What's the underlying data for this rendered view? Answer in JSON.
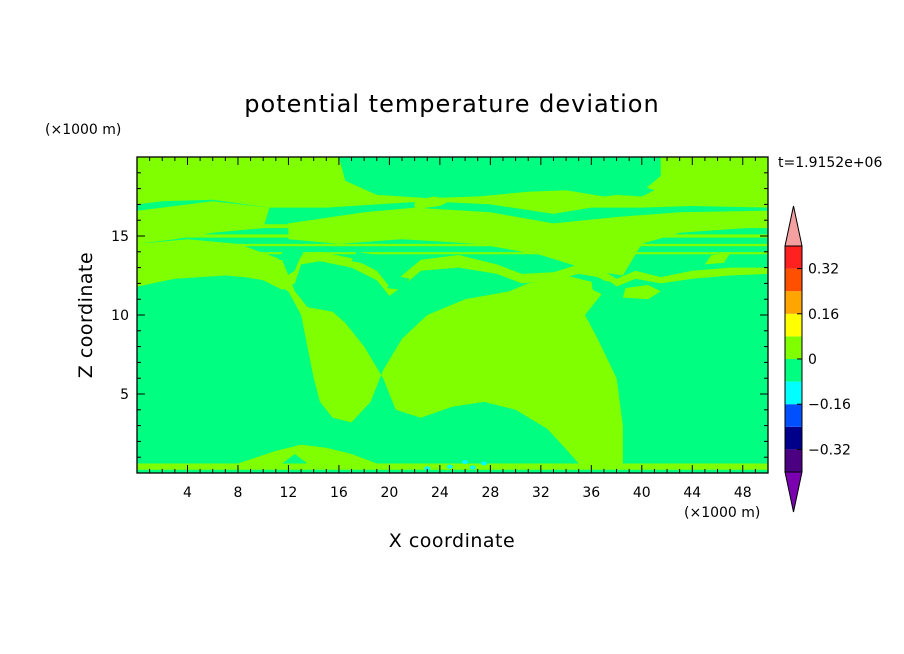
{
  "chart_data": {
    "type": "heatmap",
    "title": "potential temperature deviation",
    "xlabel": "X coordinate",
    "ylabel": "Z coordinate",
    "x_unit": "(×1000 m)",
    "y_unit": "(×1000 m)",
    "time_label": "t=1.9152e+06",
    "xlim": [
      0,
      50
    ],
    "ylim": [
      0,
      20
    ],
    "x_ticks": [
      4,
      8,
      12,
      16,
      20,
      24,
      28,
      32,
      36,
      40,
      44,
      48
    ],
    "y_ticks": [
      5,
      10,
      15
    ],
    "colorbar": {
      "levels": [
        -0.4,
        -0.32,
        -0.24,
        -0.16,
        -0.08,
        0,
        0.08,
        0.16,
        0.24,
        0.32,
        0.4
      ],
      "tick_values": [
        0.32,
        0.16,
        0,
        -0.16,
        -0.32
      ],
      "tick_labels": [
        "0.32",
        "0.16",
        "0",
        "−0.16",
        "−0.32"
      ],
      "colors": [
        "#4b0082",
        "#00008b",
        "#0050ff",
        "#00ffff",
        "#00ff80",
        "#80ff00",
        "#ffff00",
        "#ffa500",
        "#ff5000",
        "#ff2020"
      ],
      "under_color": "#7a00b0",
      "over_color": "#f4a0a0"
    },
    "background_color": "#00ff80",
    "regions": [
      {
        "value": "0 to 0.08",
        "color": "#80ff00",
        "outline": [
          [
            0,
            0.2
          ],
          [
            50,
            0.2
          ],
          [
            50,
            0.6
          ],
          [
            0,
            0.6
          ]
        ]
      },
      {
        "value": "0 to 0.08",
        "color": "#80ff00",
        "outline": [
          [
            0,
            11.8
          ],
          [
            3,
            12.3
          ],
          [
            7,
            12.5
          ],
          [
            10,
            12.3
          ],
          [
            12,
            11.5
          ],
          [
            13,
            10
          ],
          [
            13.5,
            8
          ],
          [
            14,
            6
          ],
          [
            14.5,
            4.5
          ],
          [
            15.5,
            3.5
          ],
          [
            17,
            3.2
          ],
          [
            18.5,
            4.5
          ],
          [
            19.5,
            6.5
          ],
          [
            21,
            8.5
          ],
          [
            23,
            10
          ],
          [
            26,
            11
          ],
          [
            29.5,
            11.5
          ],
          [
            31,
            12
          ],
          [
            34,
            12.5
          ],
          [
            36.5,
            12
          ],
          [
            37,
            11.5
          ],
          [
            35.5,
            10
          ],
          [
            36.5,
            8.5
          ],
          [
            38,
            6
          ],
          [
            38.5,
            3
          ],
          [
            38.5,
            0.6
          ],
          [
            35,
            0.6
          ],
          [
            34,
            1.5
          ],
          [
            32.5,
            2.8
          ],
          [
            30,
            4
          ],
          [
            27.5,
            4.5
          ],
          [
            25,
            4.2
          ],
          [
            22.5,
            3.5
          ],
          [
            20.5,
            4
          ],
          [
            19.5,
            6
          ],
          [
            18,
            8
          ],
          [
            16.5,
            9.5
          ],
          [
            15.5,
            10.2
          ],
          [
            13.5,
            10.5
          ],
          [
            12.5,
            11.5
          ],
          [
            11.5,
            13.5
          ],
          [
            8,
            14.5
          ],
          [
            4,
            14.8
          ],
          [
            0,
            14.5
          ]
        ]
      },
      {
        "value": "0 to 0.08",
        "color": "#80ff00",
        "outline": [
          [
            12,
            15.8
          ],
          [
            18,
            16.5
          ],
          [
            22,
            16.8
          ],
          [
            28,
            16.5
          ],
          [
            33,
            15.8
          ],
          [
            38,
            16.2
          ],
          [
            43,
            16.5
          ],
          [
            50,
            16.6
          ],
          [
            50,
            15.6
          ],
          [
            43,
            15.2
          ],
          [
            40,
            14.5
          ],
          [
            38.5,
            12.5
          ],
          [
            36,
            12.8
          ],
          [
            32,
            13.8
          ],
          [
            27,
            14.5
          ],
          [
            21,
            14.8
          ],
          [
            16,
            14.5
          ],
          [
            12,
            14.8
          ]
        ]
      },
      {
        "value": "0 to 0.08",
        "color": "#80ff00",
        "outline": [
          [
            0,
            14.5
          ],
          [
            3,
            14.8
          ],
          [
            6,
            15.2
          ],
          [
            10,
            15.5
          ],
          [
            10.5,
            16.8
          ],
          [
            6,
            17.2
          ],
          [
            2,
            16.8
          ],
          [
            0,
            16.6
          ]
        ]
      },
      {
        "value": "0 to 0.08",
        "color": "#80ff00",
        "outline": [
          [
            0,
            20
          ],
          [
            16,
            20
          ],
          [
            16.5,
            18.5
          ],
          [
            19,
            17.6
          ],
          [
            23,
            17.4
          ],
          [
            27,
            17.5
          ],
          [
            31,
            17.8
          ],
          [
            34,
            17.9
          ],
          [
            37,
            17.5
          ],
          [
            40,
            17.8
          ],
          [
            41.5,
            18.8
          ],
          [
            41.5,
            20
          ],
          [
            50,
            20
          ],
          [
            50,
            16.8
          ],
          [
            44,
            16.9
          ],
          [
            40,
            16.8
          ],
          [
            36,
            16.8
          ],
          [
            33,
            16.4
          ],
          [
            28,
            17
          ],
          [
            23,
            17.2
          ],
          [
            19,
            17
          ],
          [
            15,
            16.8
          ],
          [
            10.5,
            16.8
          ],
          [
            6,
            17.3
          ],
          [
            2,
            17.2
          ],
          [
            0,
            17
          ]
        ]
      },
      {
        "value": "0 to 0.08",
        "color": "#80ff00",
        "outline": [
          [
            0,
            12.3
          ],
          [
            3,
            13
          ],
          [
            7,
            13.2
          ],
          [
            10,
            12.8
          ],
          [
            11.5,
            12.3
          ],
          [
            12.5,
            12.8
          ],
          [
            13,
            13.8
          ],
          [
            14.5,
            14
          ],
          [
            17,
            13.6
          ],
          [
            19,
            12.8
          ],
          [
            20,
            11.8
          ],
          [
            21,
            12.5
          ],
          [
            22.5,
            13.5
          ],
          [
            25.5,
            13.8
          ],
          [
            28.5,
            13.2
          ],
          [
            30.5,
            12.6
          ],
          [
            33,
            12.7
          ],
          [
            35,
            13.2
          ],
          [
            36.5,
            13
          ],
          [
            38,
            12.3
          ],
          [
            39.5,
            12.8
          ],
          [
            41.5,
            12.4
          ],
          [
            44,
            12.8
          ],
          [
            47,
            13
          ],
          [
            50,
            13
          ],
          [
            50,
            12.6
          ],
          [
            47,
            12.5
          ],
          [
            44,
            12.3
          ],
          [
            41.5,
            12
          ],
          [
            39.5,
            12.3
          ],
          [
            38,
            11.8
          ],
          [
            36.5,
            12.4
          ],
          [
            35,
            12.6
          ],
          [
            33,
            12.2
          ],
          [
            30.5,
            12
          ],
          [
            28.5,
            12.6
          ],
          [
            25.5,
            13
          ],
          [
            22.5,
            12.8
          ],
          [
            21,
            11.8
          ],
          [
            20,
            11.2
          ],
          [
            19,
            12.2
          ],
          [
            17,
            13
          ],
          [
            14.5,
            13.4
          ],
          [
            13,
            13.2
          ],
          [
            12.5,
            12
          ],
          [
            11.5,
            11.6
          ],
          [
            10,
            12.2
          ],
          [
            7,
            12.6
          ],
          [
            3,
            12.4
          ],
          [
            0,
            11.8
          ]
        ]
      },
      {
        "value": "0 to 0.08",
        "color": "#80ff00",
        "outline": [
          [
            0,
            15.5
          ],
          [
            50,
            15.5
          ],
          [
            50,
            15.75
          ],
          [
            0,
            15.75
          ]
        ]
      },
      {
        "value": "0 to 0.08",
        "color": "#80ff00",
        "outline": [
          [
            0,
            14.9
          ],
          [
            50,
            14.9
          ],
          [
            50,
            15.1
          ],
          [
            0,
            15.1
          ]
        ]
      },
      {
        "value": "0 to 0.08",
        "color": "#80ff00",
        "outline": [
          [
            0,
            14.35
          ],
          [
            50,
            14.35
          ],
          [
            50,
            14.5
          ],
          [
            0,
            14.5
          ]
        ]
      },
      {
        "value": "0 to 0.08",
        "color": "#80ff00",
        "outline": [
          [
            0,
            13.85
          ],
          [
            50,
            13.85
          ],
          [
            50,
            13.98
          ],
          [
            0,
            13.98
          ]
        ]
      },
      {
        "value": "0 to 0.08",
        "color": "#80ff00",
        "outline": [
          [
            8,
            0.6
          ],
          [
            11.5,
            0.6
          ],
          [
            12.5,
            1.2
          ],
          [
            13.5,
            0.6
          ],
          [
            19,
            0.6
          ],
          [
            17,
            1.2
          ],
          [
            15,
            1.6
          ],
          [
            13,
            1.8
          ],
          [
            11,
            1.4
          ]
        ]
      },
      {
        "value": "0 to 0.08",
        "color": "#80ff00",
        "outline": [
          [
            22,
            16.7
          ],
          [
            24,
            16.9
          ],
          [
            25,
            17.3
          ],
          [
            23.5,
            17.5
          ],
          [
            22,
            17.2
          ]
        ]
      },
      {
        "value": "0 to 0.08",
        "color": "#80ff00",
        "outline": [
          [
            45,
            13.2
          ],
          [
            46.5,
            13.3
          ],
          [
            47,
            13.9
          ],
          [
            45.5,
            13.8
          ]
        ]
      },
      {
        "value": "0 to 0.08",
        "color": "#80ff00",
        "outline": [
          [
            47.5,
            17
          ],
          [
            48.2,
            17.1
          ],
          [
            48.4,
            18
          ],
          [
            47.6,
            17.9
          ]
        ]
      },
      {
        "value": "0 to 0.08",
        "color": "#80ff00",
        "outline": [
          [
            38.5,
            11.1
          ],
          [
            40.5,
            11
          ],
          [
            41.5,
            11.5
          ],
          [
            40.5,
            11.9
          ],
          [
            38.7,
            11.7
          ]
        ]
      },
      {
        "value": "-0.08 to 0",
        "color": "#00ff80",
        "outline": [
          [
            36,
            12.3
          ],
          [
            37.5,
            12.1
          ],
          [
            38.2,
            11.7
          ],
          [
            37.4,
            11.1
          ],
          [
            36.1,
            11.6
          ]
        ]
      },
      {
        "value": "-0.08 to 0",
        "color": "#00ff80",
        "outline": [
          [
            19.8,
            11.7
          ],
          [
            21,
            11.6
          ],
          [
            21.6,
            12.3
          ],
          [
            20.4,
            12.5
          ]
        ]
      },
      {
        "value": "-0.08 to 0",
        "color": "#00ff80",
        "outline": [
          [
            17,
            13.4
          ],
          [
            18.5,
            13.2
          ],
          [
            19,
            13.8
          ],
          [
            17.4,
            14
          ]
        ]
      },
      {
        "value": "-0.08 to 0",
        "color": "#00ff80",
        "outline": [
          [
            11.2,
            13.5
          ],
          [
            12.8,
            13.4
          ],
          [
            13.2,
            14
          ],
          [
            11.6,
            14.1
          ]
        ]
      },
      {
        "value": "-0.08 to 0",
        "color": "#00ff80",
        "outline": [
          [
            38,
            17.6
          ],
          [
            40,
            17.5
          ],
          [
            41,
            17.9
          ],
          [
            39.5,
            18.3
          ],
          [
            38.2,
            18.1
          ]
        ]
      }
    ],
    "cold_spots": [
      {
        "x": 24.8,
        "z": 0.4,
        "value": "-0.16 to -0.08"
      },
      {
        "x": 26.0,
        "z": 0.7,
        "value": "-0.16 to -0.08"
      },
      {
        "x": 26.6,
        "z": 0.35,
        "value": "-0.16 to -0.08"
      },
      {
        "x": 27.5,
        "z": 0.6,
        "value": "-0.16 to -0.08"
      },
      {
        "x": 23.0,
        "z": 0.3,
        "value": "-0.16 to -0.08"
      }
    ]
  }
}
